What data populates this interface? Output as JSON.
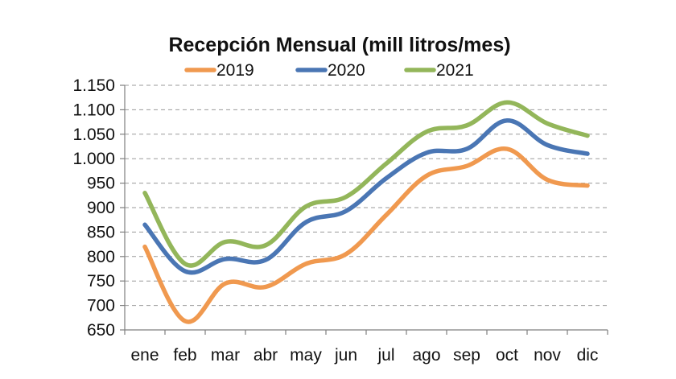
{
  "chart_data": {
    "type": "line",
    "title": "Recepción Mensual (mill litros/mes)",
    "xlabel": "",
    "ylabel": "",
    "categories": [
      "ene",
      "feb",
      "mar",
      "abr",
      "may",
      "jun",
      "jul",
      "ago",
      "sep",
      "oct",
      "nov",
      "dic"
    ],
    "ylim": [
      650,
      1150
    ],
    "yticks": [
      650,
      700,
      750,
      800,
      850,
      900,
      950,
      1000,
      1050,
      1100,
      1150
    ],
    "ytick_labels": [
      "650",
      "700",
      "750",
      "800",
      "850",
      "900",
      "950",
      "1.000",
      "1.050",
      "1.100",
      "1.150"
    ],
    "grid": true,
    "legend_position": "top",
    "series": [
      {
        "name": "2019",
        "color": "#f0994f",
        "values": [
          820,
          668,
          745,
          738,
          785,
          805,
          885,
          965,
          985,
          1020,
          957,
          945
        ]
      },
      {
        "name": "2020",
        "color": "#4a76b4",
        "values": [
          865,
          770,
          795,
          793,
          870,
          893,
          960,
          1012,
          1020,
          1078,
          1028,
          1010
        ]
      },
      {
        "name": "2021",
        "color": "#93b65a",
        "values": [
          930,
          785,
          830,
          823,
          902,
          922,
          990,
          1055,
          1068,
          1115,
          1072,
          1047
        ]
      }
    ]
  }
}
